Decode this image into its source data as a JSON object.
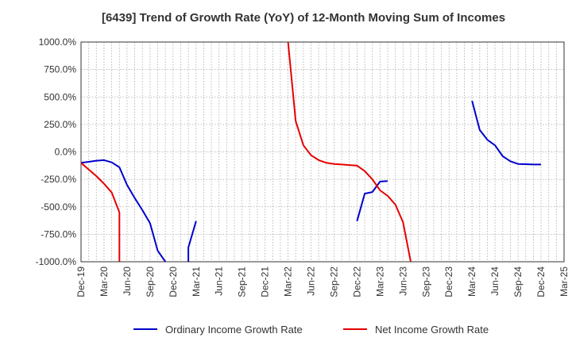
{
  "chart_data": {
    "type": "line",
    "title": "[6439]  Trend of Growth Rate (YoY) of 12-Month Moving Sum of Incomes",
    "xlabel": "",
    "ylabel": "",
    "ylim": [
      -1000,
      1000
    ],
    "yticks": [
      1000,
      750,
      500,
      250,
      0,
      -250,
      -500,
      -750,
      -1000
    ],
    "ytick_labels": [
      "1000.0%",
      "750.0%",
      "500.0%",
      "250.0%",
      "0.0%",
      "-250.0%",
      "-500.0%",
      "-750.0%",
      "-1000.0%"
    ],
    "xtick_labels": [
      "Dec-19",
      "Mar-20",
      "Jun-20",
      "Sep-20",
      "Dec-20",
      "Mar-21",
      "Jun-21",
      "Sep-21",
      "Dec-21",
      "Mar-22",
      "Jun-22",
      "Sep-22",
      "Dec-22",
      "Mar-23",
      "Jun-23",
      "Sep-23",
      "Dec-23",
      "Mar-24",
      "Jun-24",
      "Sep-24",
      "Dec-24",
      "Mar-25"
    ],
    "x_range": [
      "2019-12",
      "2025-03"
    ],
    "grid": true,
    "legend_position": "bottom",
    "series": [
      {
        "name": "Ordinary Income Growth Rate",
        "color": "#0000cc",
        "points": [
          [
            "2019-12",
            -100
          ],
          [
            "2020-01",
            -90
          ],
          [
            "2020-02",
            -80
          ],
          [
            "2020-03",
            -75
          ],
          [
            "2020-04",
            -95
          ],
          [
            "2020-05",
            -140
          ],
          [
            "2020-06",
            -300
          ],
          [
            "2020-07",
            -420
          ],
          [
            "2020-08",
            -530
          ],
          [
            "2020-09",
            -650
          ],
          [
            "2020-10",
            -900
          ],
          [
            "2020-11",
            -1000
          ],
          null,
          [
            "2021-02",
            -1000
          ],
          [
            "2021-02",
            -870
          ],
          [
            "2021-03",
            -630
          ],
          null,
          [
            "2022-12",
            -630
          ],
          [
            "2023-01",
            -380
          ],
          [
            "2023-02",
            -365
          ],
          [
            "2023-03",
            -270
          ],
          [
            "2023-04",
            -265
          ],
          null,
          [
            "2024-03",
            465
          ],
          [
            "2024-04",
            200
          ],
          [
            "2024-05",
            110
          ],
          [
            "2024-06",
            60
          ],
          [
            "2024-07",
            -40
          ],
          [
            "2024-08",
            -85
          ],
          [
            "2024-09",
            -110
          ],
          [
            "2024-10",
            -112
          ],
          [
            "2024-11",
            -115
          ],
          [
            "2024-12",
            -115
          ]
        ]
      },
      {
        "name": "Net Income Growth Rate",
        "color": "#e60000",
        "points": [
          [
            "2019-12",
            -100
          ],
          [
            "2020-01",
            -160
          ],
          [
            "2020-02",
            -220
          ],
          [
            "2020-03",
            -290
          ],
          [
            "2020-04",
            -370
          ],
          [
            "2020-05",
            -550
          ],
          [
            "2020-05",
            -1000
          ],
          null,
          [
            "2022-03",
            1000
          ],
          [
            "2022-04",
            280
          ],
          [
            "2022-05",
            60
          ],
          [
            "2022-06",
            -30
          ],
          [
            "2022-07",
            -75
          ],
          [
            "2022-08",
            -100
          ],
          [
            "2022-09",
            -110
          ],
          [
            "2022-10",
            -115
          ],
          [
            "2022-11",
            -120
          ],
          [
            "2022-12",
            -125
          ],
          [
            "2023-01",
            -175
          ],
          [
            "2023-02",
            -250
          ],
          [
            "2023-03",
            -350
          ],
          [
            "2023-04",
            -400
          ],
          [
            "2023-05",
            -480
          ],
          [
            "2023-06",
            -640
          ],
          [
            "2023-07",
            -1000
          ]
        ]
      }
    ]
  }
}
